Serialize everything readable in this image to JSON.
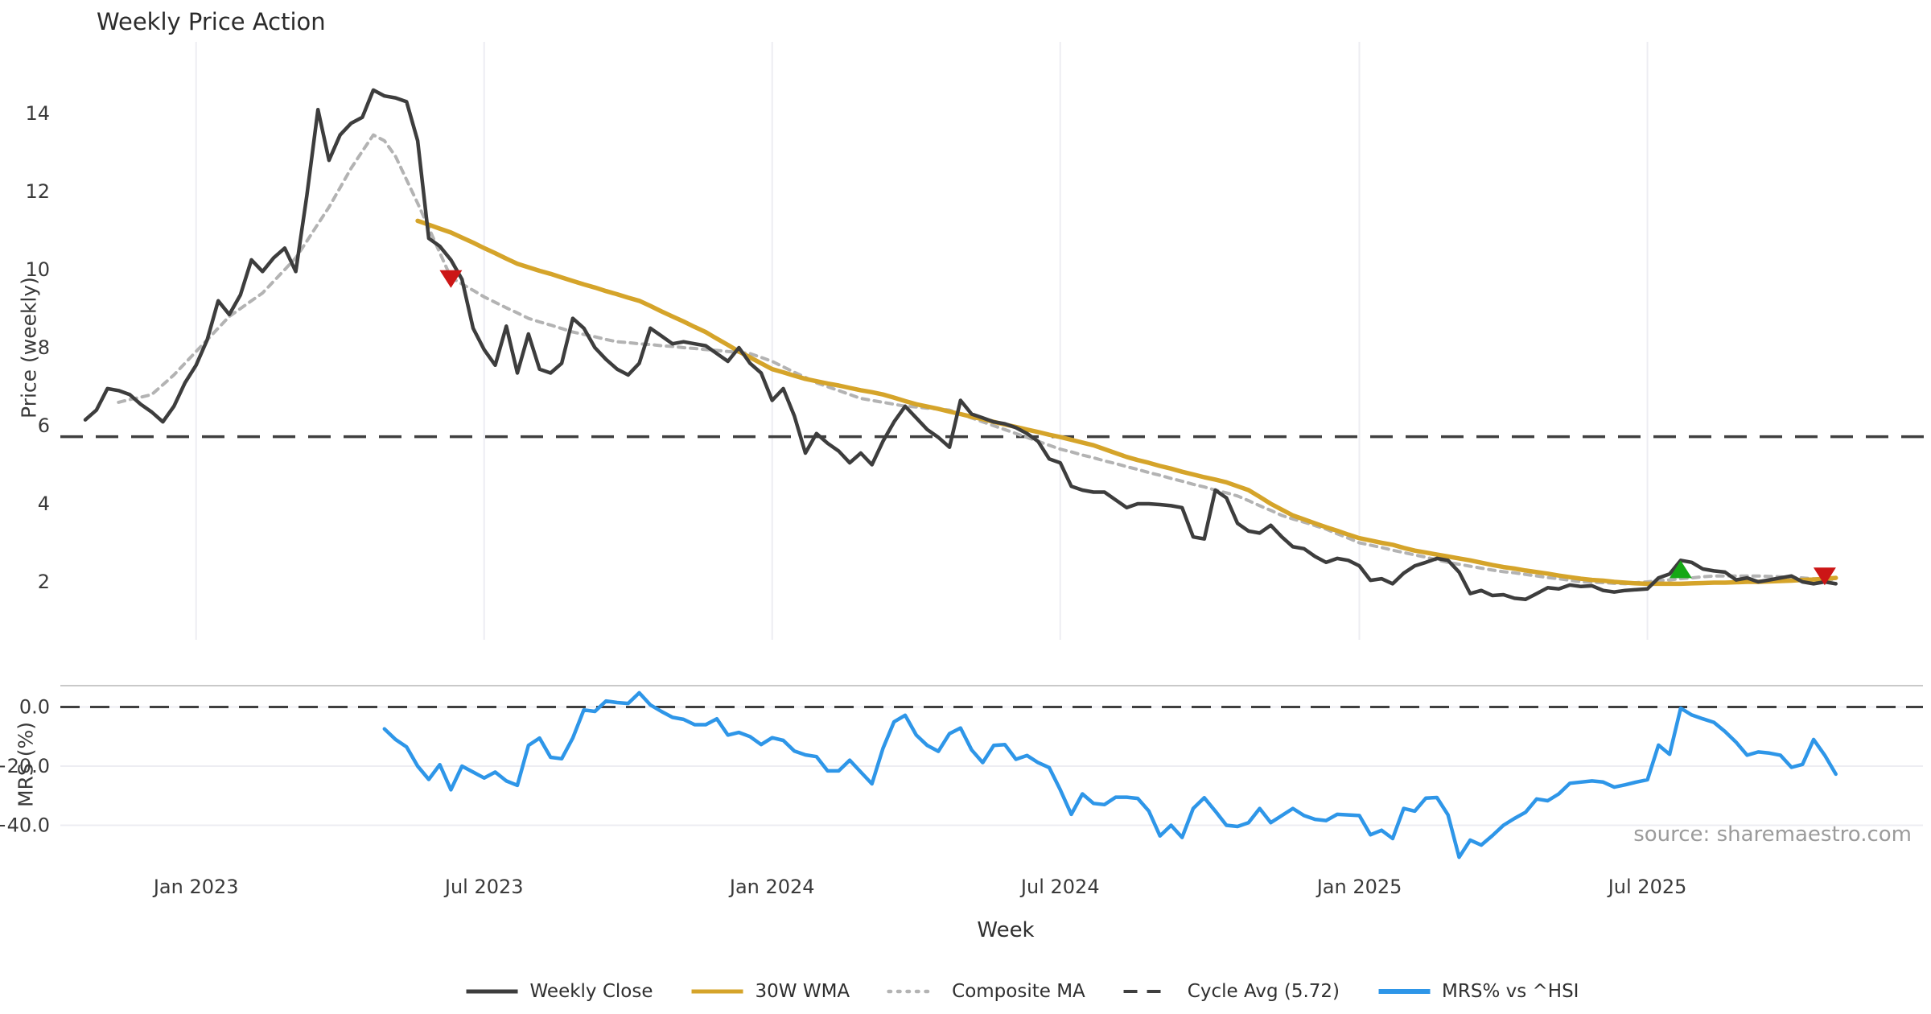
{
  "title": "Weekly Price Action",
  "source": "source: sharemaestro.com",
  "legend": [
    {
      "label": "Weekly Close",
      "style": "solid",
      "color": "#3d3d3d",
      "name": "weekly-close"
    },
    {
      "label": "30W WMA",
      "style": "solid",
      "color": "#d5a42a",
      "name": "wma-30w"
    },
    {
      "label": "Composite MA",
      "style": "dotted",
      "color": "#b3b3b3",
      "name": "composite-ma"
    },
    {
      "label": "Cycle Avg (5.72)",
      "style": "dashed",
      "color": "#3f3f3f",
      "name": "cycle-avg"
    },
    {
      "label": "MRS% vs ^HSI",
      "style": "solid-thick",
      "color": "#2e96e8",
      "name": "mrs-vs-hsi"
    }
  ],
  "colors": {
    "close": "#3d3d3d",
    "wma": "#d5a42a",
    "composite": "#b3b3b3",
    "cycle_avg": "#3f3f3f",
    "mrs": "#2e96e8",
    "sell_marker": "#cc1616",
    "buy_marker": "#15a815",
    "grid": "#ededf2",
    "panel_border": "#c9c9c9",
    "tick_text": "#3a3a3a"
  },
  "chart_data": {
    "type": "line",
    "title": "Weekly Price Action",
    "xlabel": "Week",
    "x_ticks": [
      {
        "week": 10,
        "label": "Jan 2023"
      },
      {
        "week": 36,
        "label": "Jul 2023"
      },
      {
        "week": 62,
        "label": "Jan 2024"
      },
      {
        "week": 88,
        "label": "Jul 2024"
      },
      {
        "week": 115,
        "label": "Jan 2025"
      },
      {
        "week": 141,
        "label": "Jul 2025"
      }
    ],
    "weeks_total": 159,
    "panels": [
      {
        "ylabel": "Price (weekly)",
        "ylim": [
          0.5,
          15.8
        ],
        "yticks": [
          2,
          4,
          6,
          8,
          10,
          12,
          14
        ],
        "grid": "vertical-only"
      },
      {
        "ylabel": "MRS (%)",
        "ylim": [
          -52,
          7
        ],
        "yticks": [
          0.0,
          -20.0,
          -40.0
        ],
        "ytick_labels": [
          "0.0",
          "−20.0",
          "−40.0"
        ],
        "zero_line": 0.0
      }
    ],
    "series": [
      {
        "name": "Weekly Close",
        "panel": 0,
        "style": "solid",
        "start_week": 0,
        "values": [
          6.15,
          6.4,
          6.95,
          6.9,
          6.8,
          6.55,
          6.35,
          6.1,
          6.5,
          7.1,
          7.55,
          8.2,
          9.2,
          8.85,
          9.35,
          10.25,
          9.95,
          10.3,
          10.55,
          9.95,
          11.9,
          14.1,
          12.8,
          13.45,
          13.75,
          13.9,
          14.6,
          14.45,
          14.4,
          14.3,
          13.3,
          10.8,
          10.6,
          10.25,
          9.75,
          8.5,
          7.95,
          7.55,
          8.55,
          7.35,
          8.35,
          7.45,
          7.35,
          7.6,
          8.75,
          8.5,
          8.0,
          7.7,
          7.45,
          7.3,
          7.6,
          8.5,
          8.3,
          8.1,
          8.15,
          8.1,
          8.05,
          7.85,
          7.65,
          8.0,
          7.6,
          7.35,
          6.65,
          6.95,
          6.25,
          5.3,
          5.8,
          5.55,
          5.35,
          5.05,
          5.3,
          5.0,
          5.6,
          6.1,
          6.5,
          6.2,
          5.9,
          5.7,
          5.45,
          6.65,
          6.3,
          6.2,
          6.1,
          6.05,
          5.95,
          5.8,
          5.6,
          5.15,
          5.05,
          4.45,
          4.35,
          4.3,
          4.3,
          4.1,
          3.9,
          4.0,
          4.0,
          3.98,
          3.95,
          3.9,
          3.15,
          3.1,
          4.35,
          4.15,
          3.5,
          3.3,
          3.25,
          3.45,
          3.15,
          2.9,
          2.85,
          2.65,
          2.5,
          2.6,
          2.55,
          2.41,
          2.04,
          2.08,
          1.95,
          2.22,
          2.41,
          2.5,
          2.6,
          2.55,
          2.25,
          1.7,
          1.78,
          1.65,
          1.67,
          1.58,
          1.55,
          1.7,
          1.85,
          1.82,
          1.92,
          1.88,
          1.9,
          1.78,
          1.74,
          1.78,
          1.8,
          1.82,
          2.1,
          2.2,
          2.55,
          2.5,
          2.33,
          2.28,
          2.25,
          2.05,
          2.1,
          2.0,
          2.05,
          2.1,
          2.15,
          2.0,
          1.95,
          2.0,
          1.95
        ]
      },
      {
        "name": "30W WMA",
        "panel": 0,
        "style": "solid",
        "start_week": 30,
        "values": [
          11.25,
          11.15,
          11.05,
          10.95,
          10.82,
          10.69,
          10.55,
          10.42,
          10.28,
          10.15,
          10.06,
          9.97,
          9.89,
          9.8,
          9.71,
          9.62,
          9.54,
          9.45,
          9.37,
          9.28,
          9.2,
          9.07,
          8.93,
          8.8,
          8.67,
          8.53,
          8.4,
          8.23,
          8.07,
          7.9,
          7.75,
          7.6,
          7.45,
          7.37,
          7.28,
          7.2,
          7.14,
          7.08,
          7.03,
          6.97,
          6.91,
          6.86,
          6.8,
          6.72,
          6.63,
          6.55,
          6.49,
          6.43,
          6.36,
          6.3,
          6.23,
          6.17,
          6.1,
          6.03,
          5.97,
          5.9,
          5.84,
          5.77,
          5.71,
          5.64,
          5.57,
          5.5,
          5.4,
          5.3,
          5.2,
          5.12,
          5.05,
          4.97,
          4.9,
          4.82,
          4.75,
          4.68,
          4.62,
          4.55,
          4.45,
          4.35,
          4.18,
          4.0,
          3.85,
          3.7,
          3.6,
          3.5,
          3.4,
          3.31,
          3.21,
          3.12,
          3.06,
          3.0,
          2.95,
          2.87,
          2.8,
          2.75,
          2.7,
          2.65,
          2.6,
          2.55,
          2.49,
          2.43,
          2.38,
          2.34,
          2.29,
          2.25,
          2.21,
          2.16,
          2.12,
          2.08,
          2.05,
          2.03,
          2.0,
          1.98,
          1.96,
          1.95,
          1.95,
          1.95,
          1.95,
          1.96,
          1.97,
          1.98,
          1.98,
          1.99,
          2.0,
          2.0,
          2.01,
          2.02,
          2.03,
          2.05,
          2.06,
          2.08,
          2.1
        ]
      },
      {
        "name": "Composite MA",
        "panel": 0,
        "style": "dotted",
        "start_week": 3,
        "values": [
          6.6,
          6.67,
          6.73,
          6.8,
          7.05,
          7.3,
          7.6,
          7.9,
          8.2,
          8.5,
          8.8,
          9.0,
          9.2,
          9.4,
          9.7,
          10.0,
          10.3,
          10.73,
          11.17,
          11.6,
          12.1,
          12.6,
          13.03,
          13.45,
          13.3,
          12.9,
          12.3,
          11.7,
          11.07,
          10.43,
          9.8,
          9.63,
          9.47,
          9.3,
          9.16,
          9.02,
          8.89,
          8.75,
          8.66,
          8.58,
          8.49,
          8.4,
          8.34,
          8.28,
          8.21,
          8.15,
          8.13,
          8.1,
          8.08,
          8.05,
          8.03,
          8.0,
          7.98,
          7.95,
          7.93,
          7.9,
          7.88,
          7.85,
          7.75,
          7.65,
          7.51,
          7.37,
          7.24,
          7.1,
          7.0,
          6.9,
          6.8,
          6.7,
          6.65,
          6.6,
          6.55,
          6.5,
          6.48,
          6.45,
          6.43,
          6.4,
          6.3,
          6.2,
          6.1,
          6.0,
          5.9,
          5.8,
          5.7,
          5.6,
          5.5,
          5.4,
          5.33,
          5.25,
          5.18,
          5.1,
          5.03,
          4.95,
          4.88,
          4.8,
          4.73,
          4.65,
          4.58,
          4.5,
          4.43,
          4.35,
          4.28,
          4.2,
          4.08,
          3.95,
          3.83,
          3.7,
          3.61,
          3.53,
          3.44,
          3.35,
          3.23,
          3.12,
          3.0,
          2.94,
          2.88,
          2.81,
          2.75,
          2.69,
          2.63,
          2.56,
          2.5,
          2.45,
          2.4,
          2.35,
          2.3,
          2.26,
          2.23,
          2.19,
          2.15,
          2.11,
          2.08,
          2.04,
          2.0,
          1.99,
          1.98,
          1.96,
          1.95,
          1.98,
          2.0,
          2.03,
          2.05,
          2.08,
          2.1,
          2.13,
          2.15,
          2.15,
          2.15,
          2.15,
          2.15,
          2.14,
          2.13,
          2.11,
          2.1,
          2.08,
          2.07,
          2.05
        ]
      },
      {
        "name": "Cycle Avg (5.72)",
        "panel": 0,
        "style": "dashed",
        "constant": 5.72
      },
      {
        "name": "MRS% vs ^HSI",
        "panel": 1,
        "style": "solid",
        "start_week": 27,
        "values": [
          -7.4,
          -11.0,
          -13.5,
          -20.0,
          -24.5,
          -19.5,
          -28.0,
          -20.0,
          -22.0,
          -24.0,
          -22.0,
          -25.0,
          -26.5,
          -13.0,
          -10.5,
          -17.0,
          -17.5,
          -10.5,
          -1.0,
          -1.5,
          2.0,
          1.5,
          1.2,
          4.8,
          0.7,
          -1.5,
          -3.5,
          -4.2,
          -6.0,
          -6.0,
          -4.0,
          -9.5,
          -8.6,
          -10.0,
          -12.7,
          -10.4,
          -11.3,
          -14.9,
          -16.2,
          -16.8,
          -21.6,
          -21.6,
          -18.0,
          -22.0,
          -26.0,
          -14.0,
          -5.0,
          -2.8,
          -9.5,
          -13.0,
          -15.0,
          -9.0,
          -7.1,
          -14.5,
          -18.8,
          -13.0,
          -12.7,
          -17.7,
          -16.4,
          -18.8,
          -20.5,
          -28.0,
          -36.3,
          -29.4,
          -32.6,
          -33.0,
          -30.5,
          -30.5,
          -30.9,
          -35.2,
          -43.6,
          -40.0,
          -44.1,
          -34.3,
          -30.7,
          -35.2,
          -40.0,
          -40.4,
          -39.1,
          -34.3,
          -39.1,
          -36.7,
          -34.3,
          -36.7,
          -38.0,
          -38.4,
          -36.3,
          -36.5,
          -36.7,
          -43.2,
          -41.7,
          -44.5,
          -34.3,
          -35.2,
          -30.8,
          -30.6,
          -36.5,
          -50.8,
          -45.0,
          -46.7,
          -43.5,
          -40.0,
          -37.7,
          -35.6,
          -31.1,
          -31.7,
          -29.4,
          -25.8,
          -25.4,
          -25.0,
          -25.4,
          -27.1,
          -26.3,
          -25.4,
          -24.6,
          -12.9,
          -16.0,
          -0.4,
          -2.7,
          -4.0,
          -5.2,
          -8.3,
          -11.9,
          -16.3,
          -15.2,
          -15.6,
          -16.3,
          -20.4,
          -19.4,
          -11.0,
          -16.3,
          -22.7
        ]
      }
    ],
    "markers": [
      {
        "kind": "sell",
        "shape": "triangle-down",
        "week": 33,
        "price": 9.8
      },
      {
        "kind": "buy",
        "shape": "triangle-up",
        "week": 144,
        "price": 2.28
      },
      {
        "kind": "sell",
        "shape": "triangle-down",
        "week": 157,
        "price": 2.18
      }
    ]
  }
}
